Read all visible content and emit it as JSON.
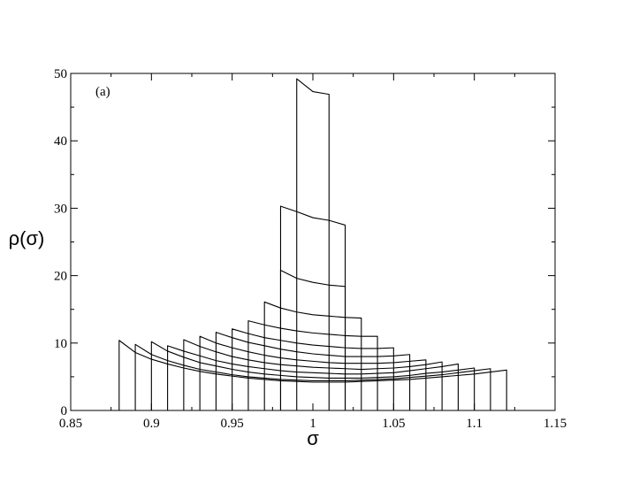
{
  "chart_data": {
    "type": "line",
    "title": "",
    "panel_label": "(a)",
    "xlabel": "σ",
    "ylabel": "ρ(σ)",
    "xlim": [
      0.85,
      1.15
    ],
    "ylim": [
      0,
      50
    ],
    "x_ticks": [
      "0.85",
      "0.9",
      "0.95",
      "1",
      "1.05",
      "1.1",
      "1.15"
    ],
    "y_ticks": [
      "0",
      "10",
      "20",
      "30",
      "40",
      "50"
    ],
    "grid": false,
    "legend": "none",
    "series": [
      {
        "x": [
          0.88,
          0.89,
          0.9,
          0.91,
          0.92,
          0.93,
          0.94,
          0.95,
          0.96,
          0.97,
          0.98,
          0.99,
          1.0,
          1.01,
          1.02,
          1.03,
          1.04,
          1.05,
          1.06,
          1.07,
          1.08,
          1.09,
          1.1,
          1.11,
          1.12
        ],
        "y": [
          10.4,
          8.6,
          7.6,
          6.9,
          6.3,
          5.8,
          5.4,
          5.1,
          4.8,
          4.6,
          4.4,
          4.3,
          4.2,
          4.2,
          4.2,
          4.3,
          4.4,
          4.5,
          4.6,
          4.8,
          5.0,
          5.2,
          5.4,
          5.7,
          6.0
        ]
      },
      {
        "x": [
          0.89,
          0.9,
          0.91,
          0.92,
          0.93,
          0.94,
          0.95,
          0.96,
          0.97,
          0.98,
          0.99,
          1.0,
          1.01,
          1.02,
          1.03,
          1.04,
          1.05,
          1.06,
          1.07,
          1.08,
          1.09,
          1.1,
          1.11
        ],
        "y": [
          9.8,
          8.3,
          7.4,
          6.7,
          6.1,
          5.7,
          5.3,
          5.0,
          4.8,
          4.6,
          4.5,
          4.4,
          4.4,
          4.4,
          4.5,
          4.6,
          4.7,
          4.9,
          5.1,
          5.3,
          5.6,
          5.9,
          6.2
        ]
      },
      {
        "x": [
          0.9,
          0.91,
          0.92,
          0.93,
          0.94,
          0.95,
          0.96,
          0.97,
          0.98,
          0.99,
          1.0,
          1.01,
          1.02,
          1.03,
          1.04,
          1.05,
          1.06,
          1.07,
          1.08,
          1.09,
          1.1
        ],
        "y": [
          10.2,
          8.8,
          7.9,
          7.1,
          6.6,
          6.1,
          5.7,
          5.4,
          5.2,
          5.0,
          4.9,
          4.8,
          4.8,
          4.8,
          4.9,
          5.0,
          5.2,
          5.5,
          5.7,
          6.0,
          6.3
        ]
      },
      {
        "x": [
          0.91,
          0.92,
          0.93,
          0.94,
          0.95,
          0.96,
          0.97,
          0.98,
          0.99,
          1.0,
          1.01,
          1.02,
          1.03,
          1.04,
          1.05,
          1.06,
          1.07,
          1.08,
          1.09
        ],
        "y": [
          9.6,
          8.8,
          8.1,
          7.4,
          6.9,
          6.5,
          6.2,
          5.9,
          5.7,
          5.6,
          5.5,
          5.4,
          5.4,
          5.5,
          5.6,
          5.9,
          6.2,
          6.5,
          6.9
        ]
      },
      {
        "x": [
          0.92,
          0.93,
          0.94,
          0.95,
          0.96,
          0.97,
          0.98,
          0.99,
          1.0,
          1.01,
          1.02,
          1.03,
          1.04,
          1.05,
          1.06,
          1.07,
          1.08
        ],
        "y": [
          10.5,
          9.5,
          8.7,
          8.0,
          7.5,
          7.1,
          6.8,
          6.6,
          6.4,
          6.3,
          6.2,
          6.1,
          6.2,
          6.3,
          6.5,
          6.8,
          7.2
        ]
      },
      {
        "x": [
          0.93,
          0.94,
          0.95,
          0.96,
          0.97,
          0.98,
          0.99,
          1.0,
          1.01,
          1.02,
          1.03,
          1.04,
          1.05,
          1.06,
          1.07
        ],
        "y": [
          11.0,
          10.0,
          9.3,
          8.7,
          8.2,
          7.8,
          7.5,
          7.3,
          7.1,
          7.0,
          7.0,
          7.0,
          7.1,
          7.3,
          7.5
        ]
      },
      {
        "x": [
          0.94,
          0.95,
          0.96,
          0.97,
          0.98,
          0.99,
          1.0,
          1.01,
          1.02,
          1.03,
          1.04,
          1.05,
          1.06
        ],
        "y": [
          11.6,
          10.8,
          10.1,
          9.6,
          9.1,
          8.7,
          8.4,
          8.2,
          8.0,
          8.0,
          8.0,
          8.1,
          8.3
        ]
      },
      {
        "x": [
          0.95,
          0.96,
          0.97,
          0.98,
          0.99,
          1.0,
          1.01,
          1.02,
          1.03,
          1.04,
          1.05
        ],
        "y": [
          12.1,
          11.4,
          10.8,
          10.4,
          10.0,
          9.7,
          9.5,
          9.3,
          9.2,
          9.2,
          9.3
        ]
      },
      {
        "x": [
          0.96,
          0.97,
          0.98,
          0.99,
          1.0,
          1.01,
          1.02,
          1.03,
          1.04
        ],
        "y": [
          13.3,
          12.7,
          12.2,
          11.8,
          11.5,
          11.3,
          11.1,
          11.0,
          11.0
        ]
      },
      {
        "x": [
          0.97,
          0.98,
          0.99,
          1.0,
          1.01,
          1.02,
          1.03
        ],
        "y": [
          16.1,
          15.2,
          14.6,
          14.2,
          14.0,
          13.8,
          13.7
        ]
      },
      {
        "x": [
          0.98,
          0.99,
          1.0,
          1.01,
          1.02
        ],
        "y": [
          20.8,
          19.6,
          19.0,
          18.6,
          18.4
        ]
      },
      {
        "x": [
          0.98,
          0.99,
          1.0,
          1.01,
          1.02
        ],
        "y": [
          30.3,
          29.5,
          28.6,
          28.2,
          27.5
        ]
      },
      {
        "x": [
          0.99,
          1.0,
          1.01
        ],
        "y": [
          49.2,
          47.3,
          46.9
        ]
      }
    ]
  }
}
